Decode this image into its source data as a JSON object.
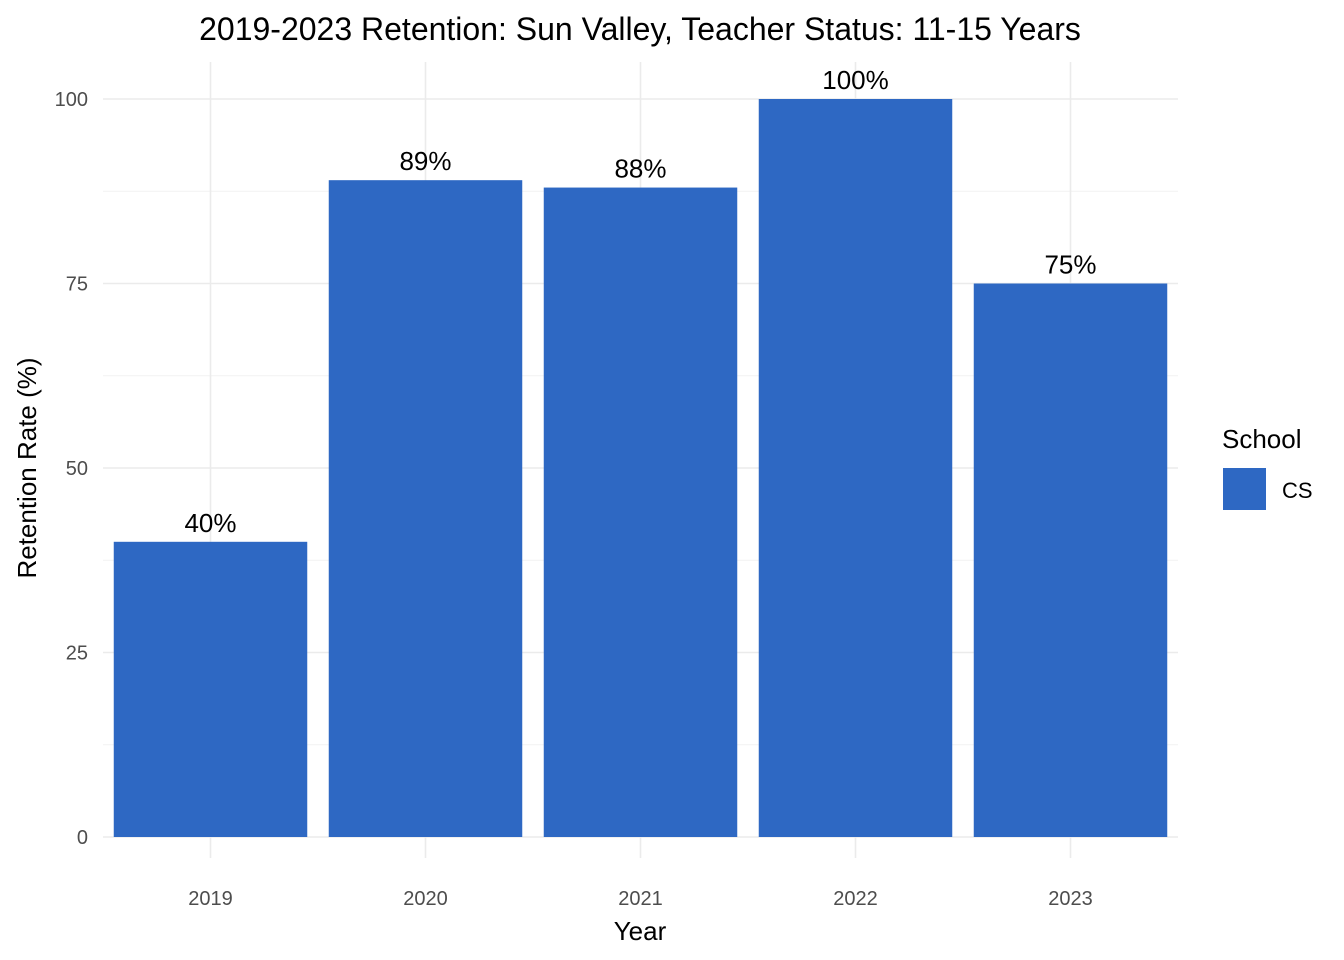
{
  "chart_data": {
    "type": "bar",
    "title": "2019-2023 Retention: Sun Valley, Teacher Status: 11-15 Years",
    "xlabel": "Year",
    "ylabel": "Retention Rate (%)",
    "categories": [
      "2019",
      "2020",
      "2021",
      "2022",
      "2023"
    ],
    "series": [
      {
        "name": "CS",
        "values": [
          40,
          89,
          88,
          100,
          75
        ],
        "labels": [
          "40%",
          "89%",
          "88%",
          "100%",
          "75%"
        ],
        "color": "#2e68c3"
      }
    ],
    "ylim": [
      0,
      105
    ],
    "yticks": [
      0,
      25,
      50,
      75,
      100
    ],
    "ytick_labels": [
      "0",
      "25",
      "50",
      "75",
      "100"
    ],
    "grid": true,
    "legend": {
      "title": "School",
      "position": "right"
    }
  }
}
